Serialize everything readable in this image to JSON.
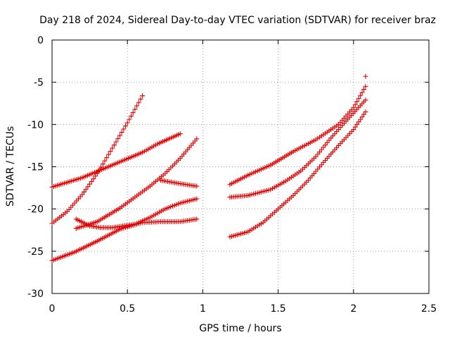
{
  "chart_data": {
    "type": "scatter",
    "title": "Day 218 of 2024, Sidereal Day-to-day VTEC variation (SDTVAR) for receiver braz",
    "xlabel": "GPS time / hours",
    "ylabel": "SDTVAR / TECUs",
    "xlim": [
      0,
      2.5
    ],
    "ylim": [
      -30,
      0
    ],
    "xticks": [
      "0",
      "0.5",
      "1",
      "1.5",
      "2",
      "2.5"
    ],
    "yticks": [
      "0",
      "-5",
      "-10",
      "-15",
      "-20",
      "-25",
      "-30"
    ],
    "grid": true,
    "marker": "+",
    "color": "#e00000",
    "series": [
      {
        "points": [
          [
            0.0,
            -17.4
          ],
          [
            0.2,
            -16.3
          ],
          [
            0.4,
            -14.8
          ],
          [
            0.6,
            -13.3
          ],
          [
            0.7,
            -12.3
          ],
          [
            0.85,
            -11.1
          ]
        ]
      },
      {
        "points": [
          [
            0.0,
            -21.7
          ],
          [
            0.1,
            -20.3
          ],
          [
            0.2,
            -18.3
          ],
          [
            0.3,
            -15.8
          ],
          [
            0.4,
            -12.8
          ],
          [
            0.5,
            -9.8
          ],
          [
            0.6,
            -6.6
          ]
        ]
      },
      {
        "points": [
          [
            0.0,
            -26.1
          ],
          [
            0.15,
            -25.1
          ],
          [
            0.3,
            -23.8
          ],
          [
            0.45,
            -22.4
          ],
          [
            0.6,
            -21.6
          ],
          [
            0.72,
            -21.5
          ],
          [
            0.85,
            -21.5
          ],
          [
            0.96,
            -21.2
          ]
        ]
      },
      {
        "points": [
          [
            0.16,
            -21.2
          ],
          [
            0.25,
            -22.0
          ],
          [
            0.32,
            -22.2
          ],
          [
            0.4,
            -22.2
          ],
          [
            0.55,
            -21.8
          ],
          [
            0.65,
            -21.0
          ],
          [
            0.75,
            -20.0
          ],
          [
            0.85,
            -19.3
          ],
          [
            0.96,
            -18.8
          ]
        ]
      },
      {
        "points": [
          [
            0.16,
            -22.3
          ],
          [
            0.3,
            -21.5
          ],
          [
            0.45,
            -19.9
          ],
          [
            0.55,
            -18.6
          ],
          [
            0.65,
            -17.3
          ],
          [
            0.75,
            -15.8
          ],
          [
            0.85,
            -14.0
          ],
          [
            0.96,
            -11.7
          ]
        ]
      },
      {
        "points": [
          [
            0.72,
            -16.6
          ],
          [
            0.85,
            -17.0
          ],
          [
            0.96,
            -17.3
          ]
        ]
      },
      {
        "points": [
          [
            1.18,
            -17.1
          ],
          [
            1.3,
            -16.0
          ],
          [
            1.45,
            -14.8
          ],
          [
            1.6,
            -13.2
          ],
          [
            1.75,
            -11.8
          ],
          [
            1.9,
            -10.0
          ],
          [
            2.0,
            -8.0
          ],
          [
            2.08,
            -5.5
          ]
        ]
      },
      {
        "points": [
          [
            2.08,
            -4.3
          ]
        ]
      },
      {
        "points": [
          [
            1.18,
            -18.6
          ],
          [
            1.3,
            -18.4
          ],
          [
            1.45,
            -17.7
          ],
          [
            1.55,
            -16.7
          ],
          [
            1.65,
            -15.5
          ],
          [
            1.75,
            -13.8
          ],
          [
            1.85,
            -11.6
          ],
          [
            1.95,
            -9.6
          ],
          [
            2.08,
            -7.1
          ]
        ]
      },
      {
        "points": [
          [
            1.18,
            -23.3
          ],
          [
            1.3,
            -22.7
          ],
          [
            1.4,
            -21.6
          ],
          [
            1.5,
            -20.0
          ],
          [
            1.6,
            -18.4
          ],
          [
            1.7,
            -16.6
          ],
          [
            1.8,
            -14.5
          ],
          [
            1.9,
            -12.5
          ],
          [
            2.0,
            -10.6
          ],
          [
            2.08,
            -8.5
          ]
        ]
      }
    ]
  }
}
